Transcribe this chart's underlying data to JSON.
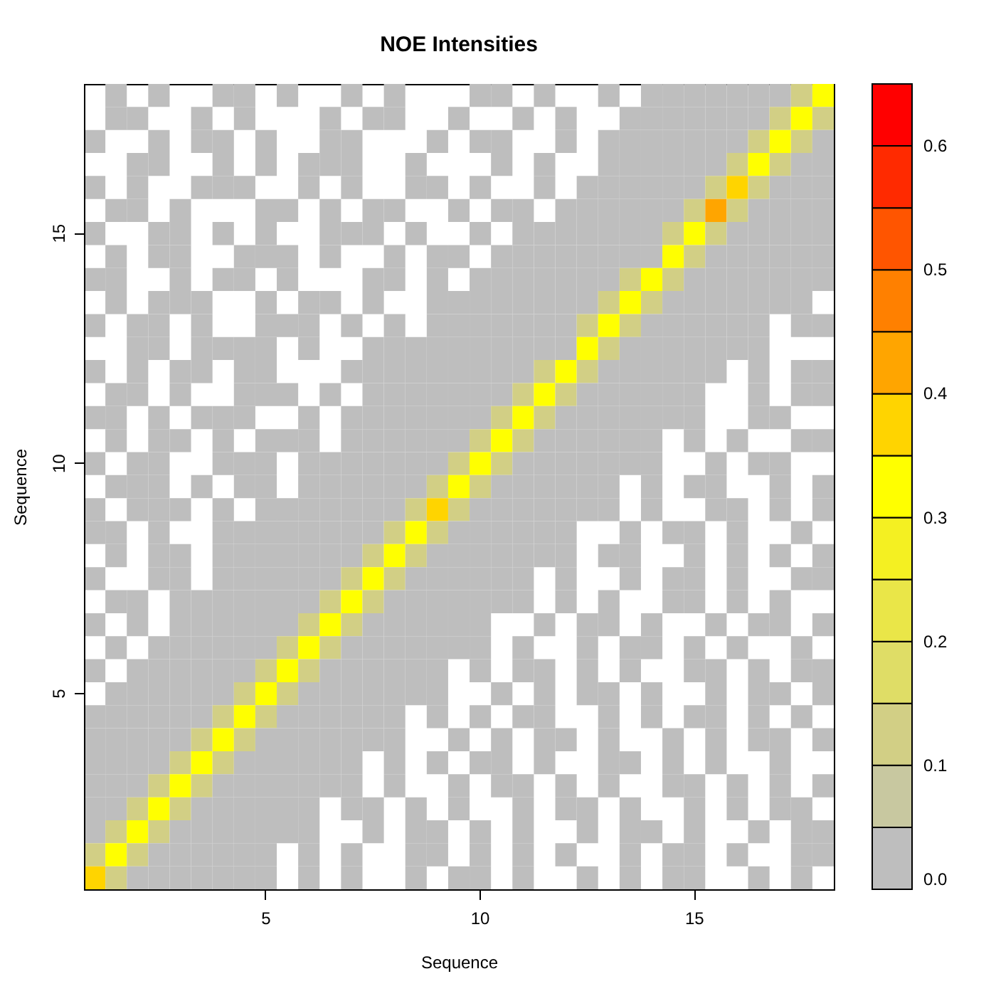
{
  "chart_data": {
    "type": "heatmap",
    "title": "NOE Intensities",
    "xlabel": "Sequence",
    "ylabel": "Sequence",
    "categories": [
      null,
      null,
      null,
      null,
      null,
      null,
      null,
      null,
      "5",
      null,
      null,
      null,
      null,
      null,
      null,
      null,
      null,
      null,
      "10",
      null,
      null,
      null,
      null,
      null,
      null,
      null,
      null,
      null,
      "15",
      null,
      null,
      null,
      null,
      null,
      null
    ],
    "y_categories": [
      null,
      null,
      null,
      null,
      null,
      null,
      "15",
      null,
      null,
      null,
      null,
      null,
      null,
      null,
      null,
      null,
      "10",
      null,
      null,
      null,
      null,
      null,
      null,
      null,
      null,
      null,
      "5",
      null,
      null,
      null,
      null,
      null,
      null,
      null,
      null
    ],
    "clim": [
      0,
      0.65
    ],
    "cticks": [
      {
        "value": 0,
        "label": "0.0"
      },
      0.1,
      0.2,
      0.3,
      0.4,
      0.5,
      0.6
    ],
    "colors": [
      "#bebebe",
      "#c8c8a0",
      "#d2cf85",
      "#dfdd66",
      "#eae648",
      "#f4f022",
      "#ffff00",
      "#ffd400",
      "#ffa500",
      "#ff8000",
      "#ff5500",
      "#ff2a00",
      "#ff0000"
    ],
    "cells": [
      [
        null,
        0.02,
        null,
        0.02,
        null,
        null,
        0.02,
        0.02,
        null,
        0.02,
        null,
        null,
        0.02,
        null,
        0.02,
        null,
        null,
        null,
        0.02,
        0.02,
        null,
        0.02,
        null,
        null,
        0.02,
        null,
        0.02,
        0.02,
        0.02,
        0.02,
        0.02,
        0.02,
        0.02,
        0.12,
        0.32
      ],
      [
        null,
        0.02,
        0.02,
        null,
        null,
        0.02,
        null,
        0.02,
        null,
        null,
        null,
        0.02,
        null,
        0.02,
        0.02,
        null,
        null,
        0.02,
        null,
        null,
        0.02,
        null,
        0.02,
        null,
        null,
        0.02,
        0.02,
        0.02,
        0.02,
        0.02,
        0.02,
        0.02,
        0.12,
        0.32,
        0.12
      ],
      [
        0.02,
        null,
        null,
        0.02,
        null,
        0.02,
        0.02,
        null,
        0.02,
        null,
        null,
        0.02,
        0.02,
        null,
        null,
        null,
        0.02,
        null,
        0.02,
        0.02,
        null,
        null,
        0.02,
        null,
        0.02,
        0.02,
        0.02,
        0.02,
        0.02,
        0.02,
        0.02,
        0.12,
        0.32,
        0.12,
        0.02
      ],
      [
        null,
        null,
        0.02,
        0.02,
        null,
        null,
        0.02,
        null,
        0.02,
        null,
        0.02,
        0.02,
        0.02,
        null,
        null,
        0.02,
        null,
        null,
        null,
        0.02,
        null,
        0.02,
        null,
        null,
        0.02,
        0.02,
        0.02,
        0.02,
        0.02,
        0.02,
        0.12,
        0.32,
        0.12,
        0.02,
        0.02
      ],
      [
        0.02,
        null,
        0.02,
        null,
        null,
        0.02,
        0.02,
        0.02,
        null,
        null,
        0.02,
        null,
        0.02,
        null,
        null,
        0.02,
        0.02,
        null,
        0.02,
        null,
        null,
        0.02,
        null,
        0.02,
        0.02,
        0.02,
        0.02,
        0.02,
        0.02,
        0.12,
        0.37,
        0.12,
        0.02,
        0.02,
        0.02
      ],
      [
        null,
        0.02,
        0.02,
        null,
        0.02,
        null,
        null,
        null,
        0.02,
        0.02,
        null,
        0.02,
        null,
        0.02,
        0.02,
        null,
        null,
        0.02,
        null,
        0.02,
        0.02,
        null,
        0.02,
        0.02,
        0.02,
        0.02,
        0.02,
        0.02,
        0.12,
        0.42,
        0.12,
        0.02,
        0.02,
        0.02,
        0.02
      ],
      [
        0.02,
        null,
        null,
        0.02,
        0.02,
        null,
        0.02,
        null,
        0.02,
        null,
        null,
        0.02,
        0.02,
        0.02,
        null,
        0.02,
        null,
        null,
        0.02,
        null,
        0.02,
        0.02,
        0.02,
        0.02,
        0.02,
        0.02,
        0.02,
        0.12,
        0.32,
        0.12,
        0.02,
        0.02,
        0.02,
        0.02,
        0.02
      ],
      [
        null,
        0.02,
        null,
        0.02,
        0.02,
        null,
        null,
        0.02,
        0.02,
        0.02,
        null,
        0.02,
        null,
        null,
        0.02,
        null,
        0.02,
        0.02,
        null,
        0.02,
        0.02,
        0.02,
        0.02,
        0.02,
        0.02,
        0.02,
        0.02,
        0.32,
        0.12,
        0.02,
        0.02,
        0.02,
        0.02,
        0.02,
        0.02
      ],
      [
        0.02,
        0.02,
        null,
        null,
        0.02,
        null,
        0.02,
        0.02,
        null,
        0.02,
        null,
        null,
        null,
        0.02,
        0.02,
        null,
        0.02,
        null,
        0.02,
        0.02,
        0.02,
        0.02,
        0.02,
        0.02,
        0.02,
        0.12,
        0.32,
        0.12,
        0.02,
        0.02,
        0.02,
        0.02,
        0.02,
        0.02,
        0.02
      ],
      [
        null,
        0.02,
        null,
        0.02,
        0.02,
        0.02,
        null,
        null,
        0.02,
        null,
        0.02,
        0.02,
        null,
        0.02,
        null,
        null,
        0.02,
        0.02,
        0.02,
        0.02,
        0.02,
        0.02,
        0.02,
        0.02,
        0.12,
        0.32,
        0.12,
        0.02,
        0.02,
        0.02,
        0.02,
        0.02,
        0.02,
        0.02,
        null
      ],
      [
        0.02,
        null,
        0.02,
        0.02,
        null,
        0.02,
        null,
        null,
        0.02,
        0.02,
        0.02,
        null,
        0.02,
        null,
        0.02,
        null,
        0.02,
        0.02,
        0.02,
        0.02,
        0.02,
        0.02,
        0.02,
        0.12,
        0.32,
        0.12,
        0.02,
        0.02,
        0.02,
        0.02,
        0.02,
        0.02,
        null,
        0.02,
        0.02
      ],
      [
        null,
        null,
        0.02,
        0.02,
        null,
        0.02,
        0.02,
        0.02,
        0.02,
        null,
        0.02,
        null,
        null,
        0.02,
        0.02,
        0.02,
        0.02,
        0.02,
        0.02,
        0.02,
        0.02,
        0.02,
        0.02,
        0.32,
        0.12,
        0.02,
        0.02,
        0.02,
        0.02,
        0.02,
        0.02,
        0.02,
        null,
        null,
        null
      ],
      [
        0.02,
        null,
        0.02,
        null,
        0.02,
        0.02,
        null,
        0.02,
        0.02,
        null,
        null,
        null,
        0.02,
        0.02,
        0.02,
        0.02,
        0.02,
        0.02,
        0.02,
        0.02,
        0.02,
        0.12,
        0.32,
        0.12,
        0.02,
        0.02,
        0.02,
        0.02,
        0.02,
        0.02,
        null,
        0.02,
        null,
        0.02,
        0.02
      ],
      [
        null,
        0.02,
        0.02,
        null,
        0.02,
        null,
        null,
        0.02,
        0.02,
        0.02,
        null,
        0.02,
        null,
        0.02,
        0.02,
        0.02,
        0.02,
        0.02,
        0.02,
        0.02,
        0.12,
        0.32,
        0.12,
        0.02,
        0.02,
        0.02,
        0.02,
        0.02,
        0.02,
        null,
        null,
        0.02,
        null,
        0.02,
        0.02
      ],
      [
        0.02,
        0.02,
        null,
        0.02,
        null,
        0.02,
        0.02,
        0.02,
        null,
        null,
        0.02,
        null,
        0.02,
        0.02,
        0.02,
        0.02,
        0.02,
        0.02,
        0.02,
        0.12,
        0.32,
        0.12,
        0.02,
        0.02,
        0.02,
        0.02,
        0.02,
        0.02,
        0.02,
        null,
        null,
        0.02,
        0.02,
        null,
        null
      ],
      [
        null,
        0.02,
        null,
        0.02,
        0.02,
        null,
        0.02,
        null,
        0.02,
        0.02,
        0.02,
        null,
        0.02,
        0.02,
        0.02,
        0.02,
        0.02,
        0.02,
        0.12,
        0.32,
        0.12,
        0.02,
        0.02,
        0.02,
        0.02,
        0.02,
        0.02,
        null,
        0.02,
        null,
        0.02,
        null,
        null,
        0.02,
        0.02
      ],
      [
        0.02,
        null,
        0.02,
        0.02,
        null,
        null,
        0.02,
        0.02,
        0.02,
        null,
        0.02,
        0.02,
        0.02,
        0.02,
        0.02,
        0.02,
        0.02,
        0.12,
        0.32,
        0.12,
        0.02,
        0.02,
        0.02,
        0.02,
        0.02,
        0.02,
        0.02,
        null,
        null,
        0.02,
        null,
        0.02,
        0.02,
        null,
        null
      ],
      [
        null,
        0.02,
        0.02,
        0.02,
        null,
        0.02,
        null,
        0.02,
        0.02,
        null,
        0.02,
        0.02,
        0.02,
        0.02,
        0.02,
        0.02,
        0.12,
        0.32,
        0.12,
        0.02,
        0.02,
        0.02,
        0.02,
        0.02,
        0.02,
        null,
        0.02,
        null,
        0.02,
        0.02,
        null,
        null,
        0.02,
        null,
        0.02
      ],
      [
        0.02,
        null,
        0.02,
        0.02,
        0.02,
        null,
        0.02,
        null,
        0.02,
        0.02,
        0.02,
        0.02,
        0.02,
        0.02,
        0.02,
        0.12,
        0.37,
        0.12,
        0.02,
        0.02,
        0.02,
        0.02,
        0.02,
        0.02,
        0.02,
        null,
        0.02,
        null,
        null,
        0.02,
        0.02,
        null,
        0.02,
        null,
        0.02
      ],
      [
        0.02,
        0.02,
        null,
        0.02,
        null,
        null,
        0.02,
        0.02,
        0.02,
        0.02,
        0.02,
        0.02,
        0.02,
        0.02,
        0.12,
        0.32,
        0.12,
        0.02,
        0.02,
        0.02,
        0.02,
        0.02,
        0.02,
        null,
        null,
        0.02,
        null,
        0.02,
        0.02,
        null,
        0.02,
        null,
        null,
        0.02,
        null
      ],
      [
        null,
        0.02,
        null,
        0.02,
        0.02,
        null,
        0.02,
        0.02,
        0.02,
        0.02,
        0.02,
        0.02,
        0.02,
        0.12,
        0.32,
        0.12,
        0.02,
        0.02,
        0.02,
        0.02,
        0.02,
        0.02,
        0.02,
        null,
        0.02,
        0.02,
        null,
        null,
        0.02,
        null,
        0.02,
        null,
        0.02,
        null,
        0.02
      ],
      [
        0.02,
        null,
        null,
        0.02,
        0.02,
        null,
        0.02,
        0.02,
        0.02,
        0.02,
        0.02,
        0.02,
        0.12,
        0.32,
        0.12,
        0.02,
        0.02,
        0.02,
        0.02,
        0.02,
        0.02,
        null,
        0.02,
        null,
        null,
        0.02,
        null,
        0.02,
        0.02,
        null,
        0.02,
        null,
        null,
        0.02,
        0.02
      ],
      [
        null,
        0.02,
        0.02,
        null,
        0.02,
        0.02,
        0.02,
        0.02,
        0.02,
        0.02,
        0.02,
        0.12,
        0.32,
        0.12,
        0.02,
        0.02,
        0.02,
        0.02,
        0.02,
        0.02,
        0.02,
        null,
        0.02,
        null,
        0.02,
        null,
        null,
        0.02,
        0.02,
        null,
        0.02,
        null,
        0.02,
        null,
        null
      ],
      [
        0.02,
        null,
        0.02,
        null,
        0.02,
        0.02,
        0.02,
        0.02,
        0.02,
        0.02,
        0.12,
        0.32,
        0.12,
        0.02,
        0.02,
        0.02,
        0.02,
        0.02,
        0.02,
        null,
        null,
        0.02,
        null,
        0.02,
        0.02,
        null,
        0.02,
        null,
        null,
        0.02,
        null,
        0.02,
        0.02,
        null,
        0.02
      ],
      [
        null,
        0.02,
        null,
        0.02,
        0.02,
        0.02,
        0.02,
        0.02,
        0.02,
        0.12,
        0.32,
        0.12,
        0.02,
        0.02,
        0.02,
        0.02,
        0.02,
        0.02,
        0.02,
        null,
        0.02,
        null,
        null,
        0.02,
        null,
        0.02,
        0.02,
        null,
        0.02,
        null,
        0.02,
        null,
        null,
        0.02,
        null
      ],
      [
        0.02,
        null,
        0.02,
        0.02,
        0.02,
        0.02,
        0.02,
        0.02,
        0.12,
        0.32,
        0.12,
        0.02,
        0.02,
        0.02,
        0.02,
        0.02,
        0.02,
        null,
        0.02,
        null,
        0.02,
        0.02,
        null,
        0.02,
        null,
        0.02,
        null,
        null,
        0.02,
        0.02,
        null,
        0.02,
        null,
        0.02,
        0.02
      ],
      [
        null,
        0.02,
        0.02,
        0.02,
        0.02,
        0.02,
        0.02,
        0.12,
        0.32,
        0.12,
        0.02,
        0.02,
        0.02,
        0.02,
        0.02,
        0.02,
        0.02,
        null,
        null,
        0.02,
        null,
        0.02,
        null,
        0.02,
        0.02,
        null,
        0.02,
        null,
        null,
        0.02,
        null,
        0.02,
        0.02,
        null,
        0.02
      ],
      [
        0.02,
        0.02,
        0.02,
        0.02,
        0.02,
        0.02,
        0.12,
        0.32,
        0.12,
        0.02,
        0.02,
        0.02,
        0.02,
        0.02,
        0.02,
        null,
        0.02,
        null,
        0.02,
        null,
        0.02,
        0.02,
        null,
        null,
        0.02,
        null,
        0.02,
        null,
        0.02,
        0.02,
        null,
        0.02,
        null,
        0.02,
        null
      ],
      [
        0.02,
        0.02,
        0.02,
        0.02,
        0.02,
        0.12,
        0.32,
        0.12,
        0.02,
        0.02,
        0.02,
        0.02,
        0.02,
        0.02,
        0.02,
        null,
        null,
        0.02,
        null,
        0.02,
        null,
        0.02,
        0.02,
        null,
        0.02,
        null,
        null,
        0.02,
        null,
        0.02,
        null,
        0.02,
        0.02,
        null,
        0.02
      ],
      [
        0.02,
        0.02,
        0.02,
        0.02,
        0.12,
        0.32,
        0.12,
        0.02,
        0.02,
        0.02,
        0.02,
        0.02,
        0.02,
        null,
        0.02,
        null,
        0.02,
        null,
        0.02,
        0.02,
        null,
        0.02,
        null,
        null,
        0.02,
        0.02,
        null,
        0.02,
        null,
        0.02,
        null,
        null,
        0.02,
        null,
        null
      ],
      [
        0.02,
        0.02,
        0.02,
        0.12,
        0.32,
        0.12,
        0.02,
        0.02,
        0.02,
        0.02,
        0.02,
        0.02,
        0.02,
        null,
        0.02,
        null,
        null,
        0.02,
        null,
        0.02,
        0.02,
        null,
        0.02,
        null,
        0.02,
        null,
        null,
        0.02,
        0.02,
        null,
        0.02,
        null,
        0.02,
        null,
        0.02
      ],
      [
        0.02,
        0.02,
        0.12,
        0.32,
        0.12,
        0.02,
        0.02,
        0.02,
        0.02,
        0.02,
        0.02,
        null,
        0.02,
        0.02,
        null,
        0.02,
        null,
        0.02,
        null,
        null,
        0.02,
        null,
        0.02,
        0.02,
        null,
        0.02,
        null,
        null,
        0.02,
        null,
        0.02,
        null,
        0.02,
        0.02,
        null
      ],
      [
        0.02,
        0.12,
        0.32,
        0.12,
        0.02,
        0.02,
        0.02,
        0.02,
        0.02,
        0.02,
        0.02,
        null,
        null,
        0.02,
        null,
        0.02,
        0.02,
        null,
        0.02,
        null,
        0.02,
        null,
        null,
        0.02,
        null,
        0.02,
        0.02,
        null,
        0.02,
        null,
        null,
        0.02,
        null,
        0.02,
        0.02
      ],
      [
        0.12,
        0.32,
        0.12,
        0.02,
        0.02,
        0.02,
        0.02,
        0.02,
        0.02,
        null,
        0.02,
        null,
        0.02,
        null,
        null,
        0.02,
        0.02,
        null,
        0.02,
        null,
        0.02,
        null,
        0.02,
        null,
        null,
        0.02,
        null,
        0.02,
        0.02,
        null,
        0.02,
        null,
        null,
        0.02,
        0.02
      ],
      [
        0.37,
        0.12,
        0.02,
        0.02,
        0.02,
        0.02,
        0.02,
        0.02,
        0.02,
        null,
        0.02,
        null,
        0.02,
        null,
        null,
        0.02,
        null,
        0.02,
        0.02,
        null,
        0.02,
        null,
        null,
        0.02,
        null,
        0.02,
        null,
        0.02,
        0.02,
        null,
        null,
        0.02,
        null,
        0.02,
        null
      ]
    ]
  }
}
